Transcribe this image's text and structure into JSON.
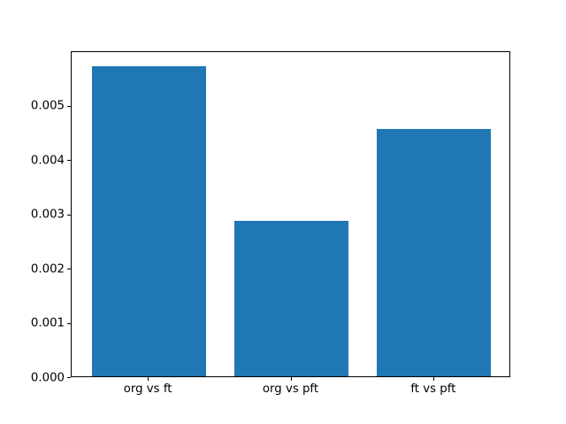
{
  "figure": {
    "background": "#ffffff"
  },
  "chart_data": {
    "type": "bar",
    "categories": [
      "org vs ft",
      "org vs pft",
      "ft vs pft"
    ],
    "values": [
      0.00571,
      0.00287,
      0.00456
    ],
    "title": "",
    "xlabel": "",
    "ylabel": "",
    "ylim": [
      0,
      0.006
    ],
    "xlim": [
      -0.54,
      2.54
    ],
    "bar_width": 0.8,
    "yticks": [
      0.0,
      0.001,
      0.002,
      0.003,
      0.004,
      0.005
    ],
    "ytick_labels": [
      "0.000",
      "0.001",
      "0.002",
      "0.003",
      "0.004",
      "0.005"
    ],
    "bar_color": "#1f77b4",
    "spine_color": "#000000",
    "grid": false,
    "legend": null
  }
}
